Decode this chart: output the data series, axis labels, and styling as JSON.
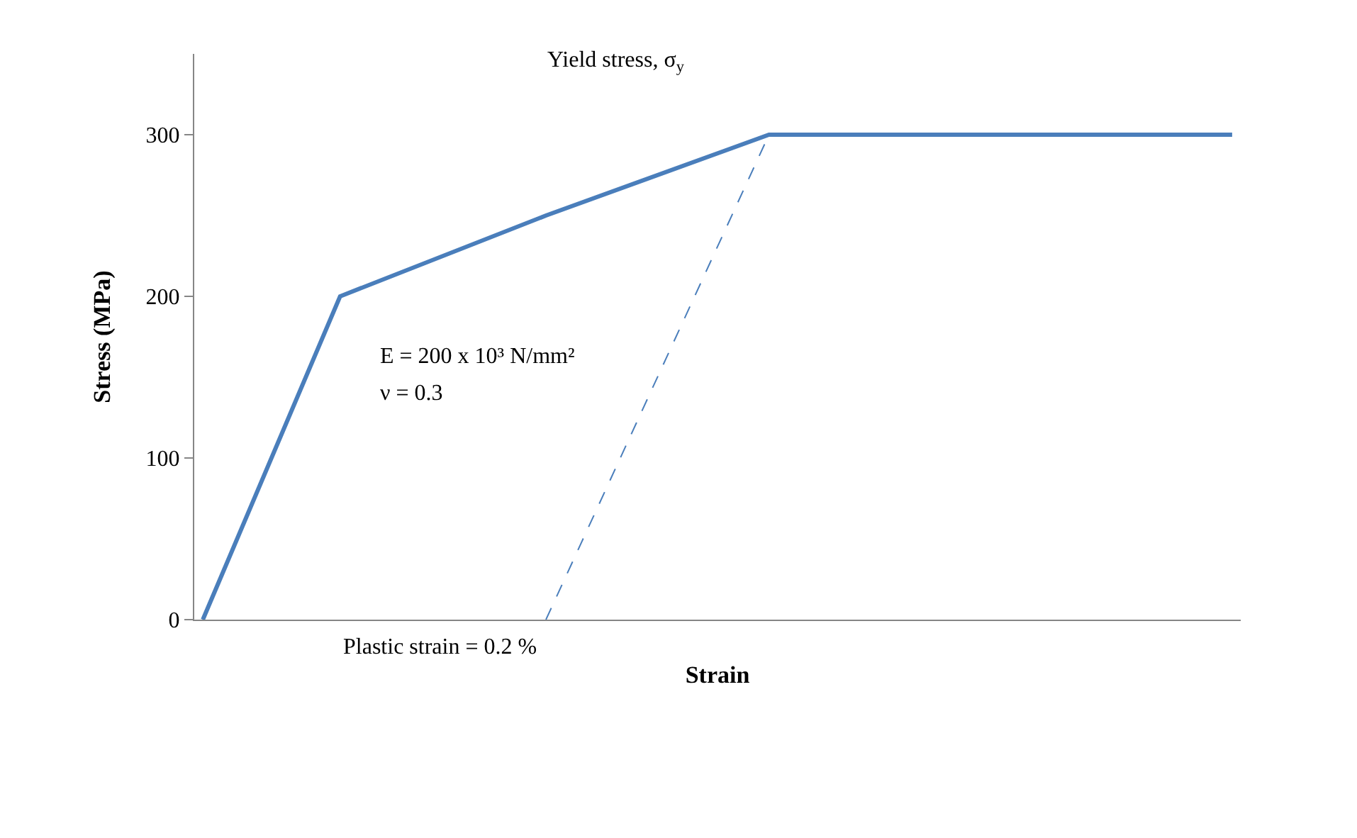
{
  "chart_data": {
    "type": "line",
    "ylabel": "Stress (MPa)",
    "xlabel": "Strain",
    "categories": [
      null,
      null,
      null,
      null,
      null,
      null,
      null,
      null,
      null,
      null,
      null,
      null,
      null,
      null,
      null,
      null,
      null,
      null,
      null,
      null,
      null,
      null,
      null,
      null,
      null,
      null,
      null,
      null,
      null,
      null,
      null,
      null,
      null,
      null,
      null,
      null,
      null,
      null,
      null,
      null,
      null,
      null,
      null,
      null,
      null,
      null,
      null,
      null,
      null,
      null,
      null,
      null,
      null,
      null,
      null,
      null,
      null,
      null,
      null,
      null,
      null
    ],
    "series": [
      {
        "color": "#4a7ebb",
        "line_style": "solid",
        "values": [
          0,
          null,
          null,
          null,
          null,
          null,
          null,
          null,
          200,
          null,
          null,
          null,
          null,
          null,
          null,
          null,
          null,
          null,
          null,
          null,
          250,
          null,
          null,
          null,
          null,
          null,
          null,
          null,
          null,
          null,
          null,
          null,
          null,
          300,
          null,
          null,
          null,
          null,
          null,
          null,
          null,
          null,
          null,
          null,
          null,
          null,
          null,
          null,
          null,
          null,
          null,
          null,
          null,
          null,
          null,
          null,
          null,
          null,
          null,
          null,
          300
        ]
      },
      {
        "color": "#4a7ebb",
        "line_style": "dashed",
        "values": [
          null,
          null,
          null,
          null,
          null,
          null,
          null,
          null,
          null,
          null,
          null,
          null,
          null,
          null,
          null,
          null,
          null,
          null,
          null,
          null,
          0,
          null,
          null,
          null,
          null,
          null,
          null,
          null,
          null,
          null,
          null,
          null,
          null,
          300,
          null,
          null,
          null,
          null,
          null,
          null,
          null,
          null,
          null,
          null,
          null,
          null,
          null,
          null,
          null,
          null,
          null,
          null,
          null,
          null,
          null,
          null,
          null,
          null,
          null,
          null,
          null
        ]
      }
    ],
    "ylim": [
      0,
      350
    ],
    "yticks": [
      0,
      100,
      200,
      300
    ],
    "tick_labels": "y",
    "annotations": [
      "Yield stress, σ$_{y}$",
      "E = 200 x 10³ N/mm²",
      "ν = 0.3",
      "Plastic strain = 0.2 %"
    ]
  }
}
